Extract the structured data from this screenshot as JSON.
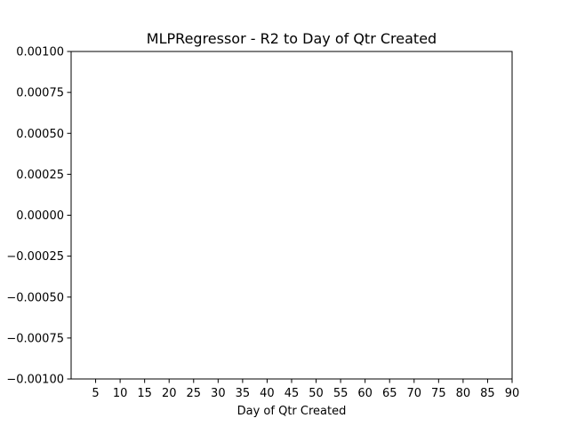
{
  "chart_data": {
    "type": "line",
    "title": "MLPRegressor - R2 to Day of Qtr Created",
    "xlabel": "Day of Qtr Created",
    "ylabel": "",
    "xlim": [
      0,
      90
    ],
    "ylim": [
      -0.001,
      0.001
    ],
    "x_ticks": [
      5,
      10,
      15,
      20,
      25,
      30,
      35,
      40,
      45,
      50,
      55,
      60,
      65,
      70,
      75,
      80,
      85,
      90
    ],
    "x_tick_labels": [
      "5",
      "10",
      "15",
      "20",
      "25",
      "30",
      "35",
      "40",
      "45",
      "50",
      "55",
      "60",
      "65",
      "70",
      "75",
      "80",
      "85",
      "90"
    ],
    "y_ticks": [
      0.001,
      0.00075,
      0.0005,
      0.00025,
      0,
      -0.00025,
      -0.0005,
      -0.00075,
      -0.001
    ],
    "y_tick_labels": [
      "0.00100",
      "0.00075",
      "0.00050",
      "0.00025",
      "0.00000",
      "−0.00025",
      "−0.00050",
      "−0.00075",
      "−0.00100"
    ],
    "grid": false,
    "series": []
  }
}
